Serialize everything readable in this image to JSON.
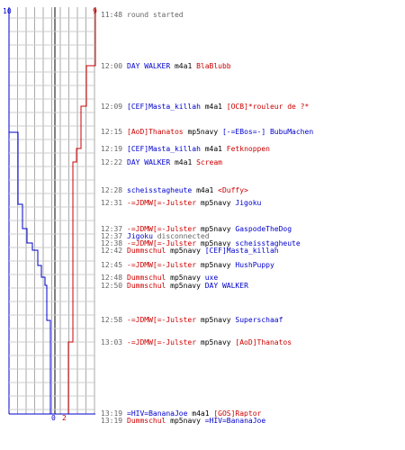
{
  "score": {
    "blue_start": "10",
    "red_start": "9",
    "blue_end": "0",
    "red_end": "2"
  },
  "colors": {
    "blue": "#0000cc",
    "red": "#cc0000",
    "grid": "#aaaaaa",
    "axis": "#000000"
  },
  "events": [
    {
      "time": "11:48",
      "parts": [
        {
          "t": "round started",
          "c": "gray"
        }
      ]
    },
    {
      "time": "12:00",
      "parts": [
        {
          "t": "DAY WALKER",
          "c": "blue"
        },
        {
          "t": " m4a1 ",
          "c": "blk"
        },
        {
          "t": "BlaBlubb",
          "c": "red"
        }
      ]
    },
    {
      "time": "12:09",
      "parts": [
        {
          "t": "[CEF]Masta_killah",
          "c": "blue"
        },
        {
          "t": " m4a1 ",
          "c": "blk"
        },
        {
          "t": "[OCB]*rouleur de ?*",
          "c": "red"
        }
      ]
    },
    {
      "time": "12:15",
      "parts": [
        {
          "t": "[AoD]Thanatos",
          "c": "red"
        },
        {
          "t": " mp5navy ",
          "c": "blk"
        },
        {
          "t": "[-=EBos=-] BubuMachen",
          "c": "blue"
        }
      ]
    },
    {
      "time": "12:19",
      "parts": [
        {
          "t": "[CEF]Masta_killah",
          "c": "blue"
        },
        {
          "t": " m4a1 ",
          "c": "blk"
        },
        {
          "t": "Fetknoppen",
          "c": "red"
        }
      ]
    },
    {
      "time": "12:22",
      "parts": [
        {
          "t": "DAY WALKER",
          "c": "blue"
        },
        {
          "t": " m4a1 ",
          "c": "blk"
        },
        {
          "t": "Scream",
          "c": "red"
        }
      ]
    },
    {
      "time": "12:28",
      "parts": [
        {
          "t": "scheisstagheute",
          "c": "blue"
        },
        {
          "t": " m4a1 ",
          "c": "blk"
        },
        {
          "t": "<Duffy>",
          "c": "red"
        }
      ]
    },
    {
      "time": "12:31",
      "parts": [
        {
          "t": "-=JDMW[=-Julster",
          "c": "red"
        },
        {
          "t": " mp5navy ",
          "c": "blk"
        },
        {
          "t": "Jigoku",
          "c": "blue"
        }
      ]
    },
    {
      "time": "12:37",
      "parts": [
        {
          "t": "-=JDMW[=-Julster",
          "c": "red"
        },
        {
          "t": " mp5navy ",
          "c": "blk"
        },
        {
          "t": "GaspodeTheDog",
          "c": "blue"
        }
      ]
    },
    {
      "time": "12:37",
      "parts": [
        {
          "t": "Jigoku",
          "c": "blue"
        },
        {
          "t": " disconnected",
          "c": "gray"
        }
      ]
    },
    {
      "time": "12:38",
      "parts": [
        {
          "t": "-=JDMW[=-Julster",
          "c": "red"
        },
        {
          "t": " mp5navy ",
          "c": "blk"
        },
        {
          "t": "scheisstagheute",
          "c": "blue"
        }
      ]
    },
    {
      "time": "12:42",
      "parts": [
        {
          "t": "Dummschul",
          "c": "red"
        },
        {
          "t": " mp5navy ",
          "c": "blk"
        },
        {
          "t": "[CEF]Masta_killah",
          "c": "blue"
        }
      ]
    },
    {
      "time": "12:45",
      "parts": [
        {
          "t": "-=JDMW[=-Julster",
          "c": "red"
        },
        {
          "t": " mp5navy ",
          "c": "blk"
        },
        {
          "t": "HushPuppy",
          "c": "blue"
        }
      ]
    },
    {
      "time": "12:48",
      "parts": [
        {
          "t": "Dummschul",
          "c": "red"
        },
        {
          "t": " mp5navy ",
          "c": "blk"
        },
        {
          "t": "uxe",
          "c": "blue"
        }
      ]
    },
    {
      "time": "12:50",
      "parts": [
        {
          "t": "Dummschul",
          "c": "red"
        },
        {
          "t": " mp5navy ",
          "c": "blk"
        },
        {
          "t": "DAY WALKER",
          "c": "blue"
        }
      ]
    },
    {
      "time": "12:58",
      "parts": [
        {
          "t": "-=JDMW[=-Julster",
          "c": "red"
        },
        {
          "t": " mp5navy ",
          "c": "blk"
        },
        {
          "t": "Superschaaf",
          "c": "blue"
        }
      ]
    },
    {
      "time": "13:03",
      "parts": [
        {
          "t": "-=JDMW[=-Julster",
          "c": "red"
        },
        {
          "t": " mp5navy ",
          "c": "blk"
        },
        {
          "t": "[AoD]Thanatos",
          "c": "red"
        }
      ]
    },
    {
      "time": "13:19",
      "parts": [
        {
          "t": "=HIV=BananaJoe",
          "c": "blue"
        },
        {
          "t": " m4a1 ",
          "c": "blk"
        },
        {
          "t": "[GOS]Raptor",
          "c": "red"
        }
      ]
    },
    {
      "time": "13:19",
      "parts": [
        {
          "t": "Dummschul",
          "c": "red"
        },
        {
          "t": " mp5navy ",
          "c": "blk"
        },
        {
          "t": "=HIV=BananaJoe",
          "c": "blue"
        }
      ]
    }
  ]
}
